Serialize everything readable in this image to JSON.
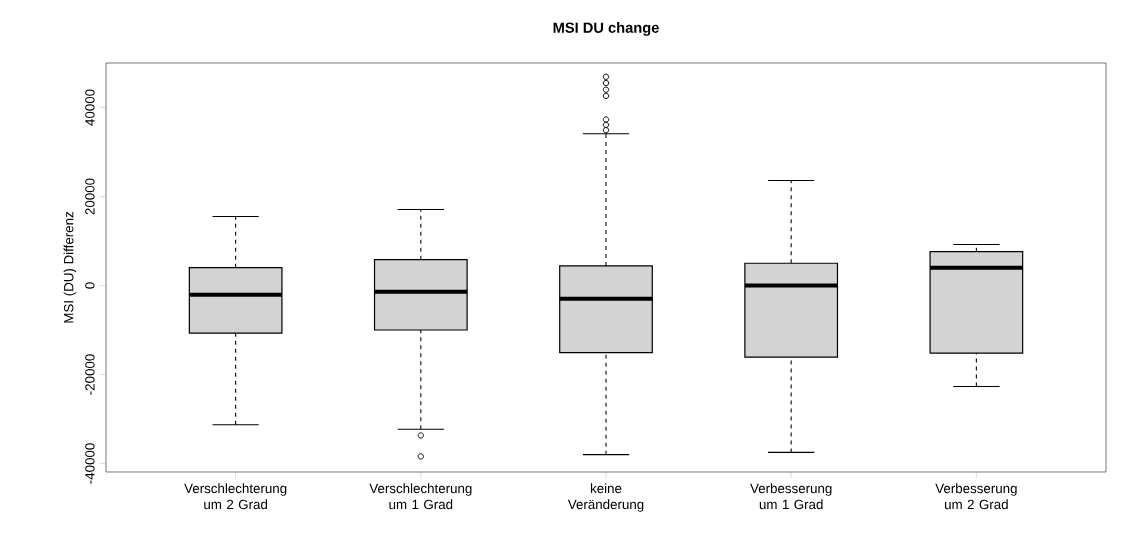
{
  "chart_data": {
    "type": "box",
    "title": "MSI DU change",
    "ylabel": "MSI (DU) Differenz",
    "categories": [
      "Verschlechterung um 2 Grad",
      "Verschlechterung um 1 Grad",
      "keine Veränderung",
      "Verbesserung um 1 Grad",
      "Verbesserung um 2 Grad"
    ],
    "series": [
      {
        "color": "#d3d3d3",
        "boxes": [
          {
            "low": -31300,
            "q1": -10700,
            "median": -2100,
            "q3": 4000,
            "high": 15500
          },
          {
            "low": -32300,
            "q1": -10000,
            "median": -1400,
            "q3": 5800,
            "high": 17100,
            "outliers": [
              -33700,
              -38400
            ]
          },
          {
            "low": -38000,
            "q1": -15100,
            "median": -3000,
            "q3": 4400,
            "high": 34100,
            "outliers": [
              34900,
              36100,
              37300,
              42600,
              44000,
              45500,
              46900
            ]
          },
          {
            "low": -37500,
            "q1": -16100,
            "median": 0,
            "q3": 5000,
            "high": 23600
          },
          {
            "low": -22700,
            "q1": -15200,
            "median": 4000,
            "q3": 7600,
            "high": 9200
          }
        ]
      }
    ],
    "ylim": [
      -41900,
      50000
    ],
    "yticks": [
      -40000,
      -20000,
      0,
      20000,
      40000
    ],
    "marker": "circle",
    "grid": false
  }
}
